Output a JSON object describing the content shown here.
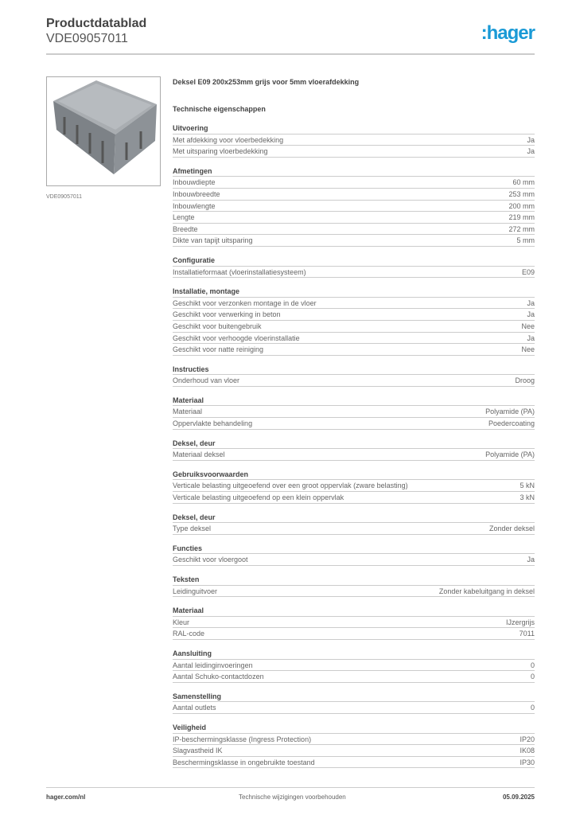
{
  "header": {
    "title": "Productdatablad",
    "code": "VDE09057011",
    "logo": ":hager",
    "brand_color": "#1a9ad6"
  },
  "product": {
    "image_caption": "VDE09057011",
    "description": "Deksel E09 200x253mm grijs voor 5mm vloerafdekking"
  },
  "tech_heading": "Technische eigenschappen",
  "sections": [
    {
      "title": "Uitvoering",
      "rows": [
        [
          "Met afdekking voor vloerbedekking",
          "Ja"
        ],
        [
          "Met uitsparing vloerbedekking",
          "Ja"
        ]
      ]
    },
    {
      "title": "Afmetingen",
      "rows": [
        [
          "Inbouwdiepte",
          "60 mm"
        ],
        [
          "Inbouwbreedte",
          "253 mm"
        ],
        [
          "Inbouwlengte",
          "200 mm"
        ],
        [
          "Lengte",
          "219 mm"
        ],
        [
          "Breedte",
          "272 mm"
        ],
        [
          "Dikte van tapijt uitsparing",
          "5 mm"
        ]
      ]
    },
    {
      "title": "Configuratie",
      "rows": [
        [
          "Installatieformaat (vloerinstallatiesysteem)",
          "E09"
        ]
      ]
    },
    {
      "title": "Installatie, montage",
      "rows": [
        [
          "Geschikt voor verzonken montage in de vloer",
          "Ja"
        ],
        [
          "Geschikt voor verwerking in beton",
          "Ja"
        ],
        [
          "Geschikt voor buitengebruik",
          "Nee"
        ],
        [
          "Geschikt voor verhoogde vloerinstallatie",
          "Ja"
        ],
        [
          "Geschikt voor natte reiniging",
          "Nee"
        ]
      ]
    },
    {
      "title": "Instructies",
      "rows": [
        [
          "Onderhoud van vloer",
          "Droog"
        ]
      ]
    },
    {
      "title": "Materiaal",
      "rows": [
        [
          "Materiaal",
          "Polyamide (PA)"
        ],
        [
          "Oppervlakte behandeling",
          "Poedercoating"
        ]
      ]
    },
    {
      "title": "Deksel, deur",
      "rows": [
        [
          "Materiaal deksel",
          "Polyamide (PA)"
        ]
      ]
    },
    {
      "title": "Gebruiksvoorwaarden",
      "rows": [
        [
          "Verticale belasting uitgeoefend over een groot oppervlak (zware belasting)",
          "5 kN"
        ],
        [
          "Verticale belasting uitgeoefend op een klein oppervlak",
          "3 kN"
        ]
      ]
    },
    {
      "title": "Deksel, deur",
      "rows": [
        [
          "Type deksel",
          "Zonder deksel"
        ]
      ]
    },
    {
      "title": "Functies",
      "rows": [
        [
          "Geschikt voor vloergoot",
          "Ja"
        ]
      ]
    },
    {
      "title": "Teksten",
      "rows": [
        [
          "Leidinguitvoer",
          "Zonder kabeluitgang in deksel"
        ]
      ]
    },
    {
      "title": "Materiaal",
      "rows": [
        [
          "Kleur",
          "IJzergrijs"
        ],
        [
          "RAL-code",
          "7011"
        ]
      ]
    },
    {
      "title": "Aansluiting",
      "rows": [
        [
          "Aantal leidinginvoeringen",
          "0"
        ],
        [
          "Aantal Schuko-contactdozen",
          "0"
        ]
      ]
    },
    {
      "title": "Samenstelling",
      "rows": [
        [
          "Aantal outlets",
          "0"
        ]
      ]
    },
    {
      "title": "Veiligheid",
      "rows": [
        [
          "IP-beschermingsklasse (Ingress Protection)",
          "IP20"
        ],
        [
          "Slagvastheid IK",
          "IK08"
        ],
        [
          "Beschermingsklasse in ongebruikte toestand",
          "IP30"
        ]
      ]
    }
  ],
  "footer": {
    "website": "hager.com/nl",
    "notice": "Technische wijzigingen voorbehouden",
    "date": "05.09.2025"
  }
}
